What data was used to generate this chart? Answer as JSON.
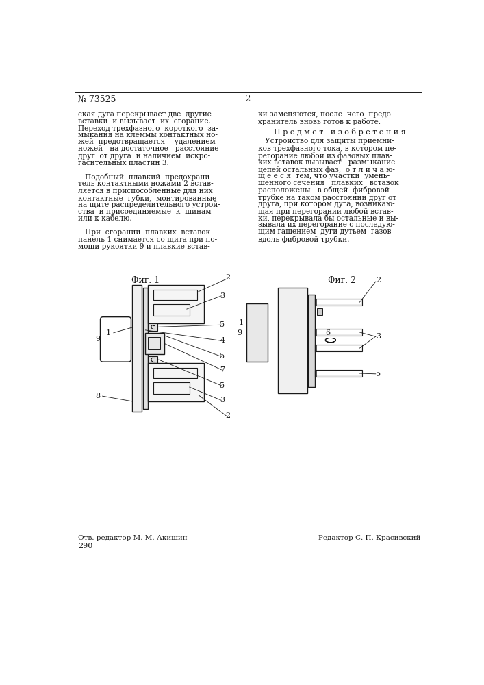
{
  "page_number": "№ 73525",
  "page_num_center": "— 2 —",
  "background_color": "#ffffff",
  "text_color": "#1a1a1a",
  "fig1_label": "Фиг. 1",
  "fig2_label": "Фиг. 2",
  "footer_left": "Отв. редактор М. М. Акишин",
  "footer_right": "Редактор С. П. Красивский",
  "footer_page": "290",
  "left_col": [
    "ская дуга перекрывает две  другие",
    "вставки  и вызывает  их  сгорание.",
    "Переход трехфазного  короткого  за-",
    "мыкания на клеммы контактных но-",
    "жей  предотвращается    удалением",
    "ножей   на достаточное   расстояние",
    "друг  от друга  и наличием  искро-",
    "гасительных пластин 3.",
    "",
    "   Подобный  плавкий  предохрани-",
    "тель контактными ножами 2 встав-",
    "ляется в приспособленные для них",
    "контактные  губки,  монтированные",
    "на щите распределительного устрой-",
    "ства  и присоединяемые  к  шинам",
    "или к кабелю.",
    "",
    "   При  сгорании  плавких  вставок",
    "панель 1 снимается со щита при по-",
    "мощи рукоятки 9 и плавкие встав-"
  ],
  "right_col_top": [
    "ки заменяются, после  чего  предо-",
    "хранитель вновь готов к работе."
  ],
  "right_col_header": "П р е д м е т   и з о б р е т е н и я",
  "right_col_body": [
    "   Устройство для защиты приемни-",
    "ков трехфазного тока, в котором пе-",
    "регорание любой из фазовых плав-",
    "ких вставок вызывает   размыкание",
    "цепей остальных фаз,  о т л и ч а ю-",
    "щ е е с я  тем, что участки  умень-",
    "шенного сечения   плавких   вставок",
    "расположены   в общей  фибровой",
    "трубке на таком расстоянии друг от",
    "друга, при котором дуга, возникаю-",
    "щая при перегорании любой встав-",
    "ки, перекрывала бы остальные и вы-",
    "зывала их перегорание с последую-",
    "щим гашением  дуги дутьем  газов",
    "вдоль фибровой трубки."
  ]
}
